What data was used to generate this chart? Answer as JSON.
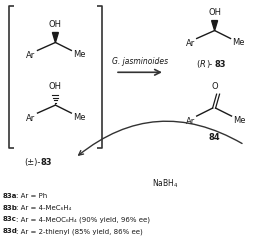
{
  "bg_color": "#ffffff",
  "fig_width": 2.73,
  "fig_height": 2.48,
  "dpi": 100,
  "text_color": "#1a1a1a",
  "arrow_color": "#333333",
  "enzyme_label": "G. jasminoides",
  "racemic_label": "(±)-",
  "racemic_num": "83",
  "R_product_label_italic": "(R)-",
  "R_product_num": "83",
  "ketone_label": "84",
  "nabh4_label": "NaBH",
  "footnotes": [
    [
      "83a",
      ": Ar = Ph"
    ],
    [
      "83b",
      ": Ar = 4-MeC₆H₄"
    ],
    [
      "83c",
      ": Ar = 4-MeOC₆H₄ (90% yield, 96% ee)"
    ],
    [
      "83d",
      ": Ar = 2-thienyl (85% yield, 86% ee)"
    ]
  ]
}
